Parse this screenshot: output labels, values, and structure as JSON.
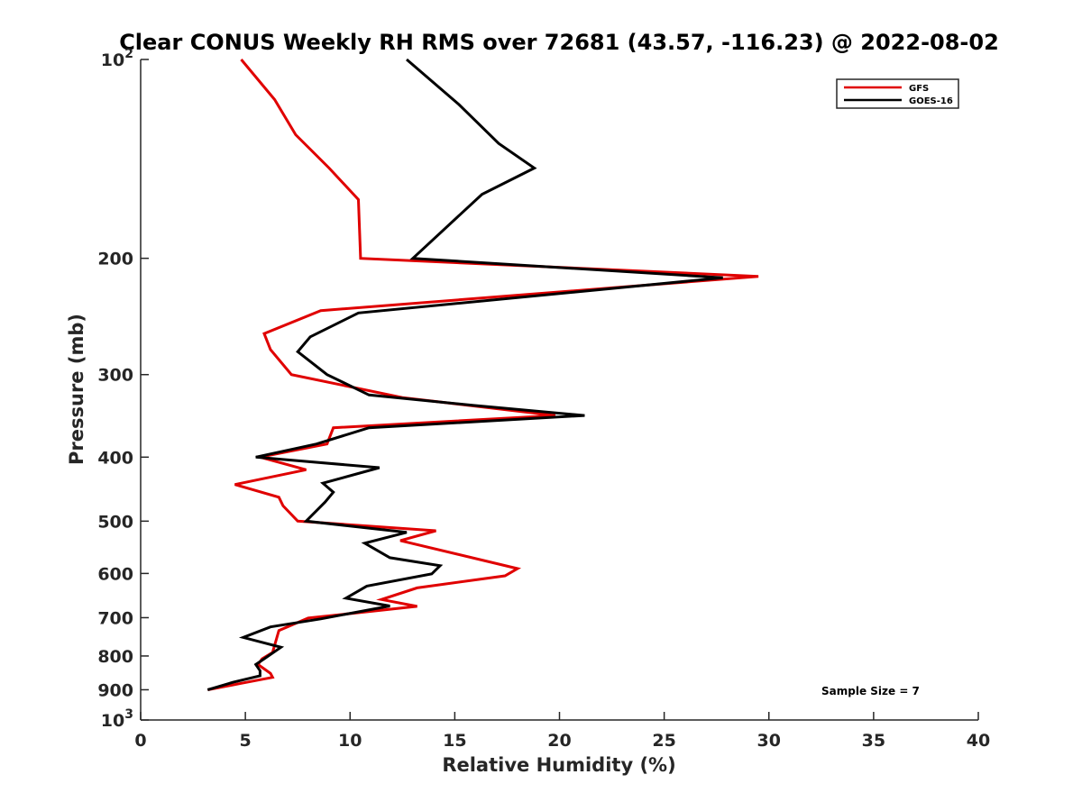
{
  "chart_data": {
    "type": "line",
    "title": "Clear CONUS Weekly RH RMS over 72681 (43.57, -116.23) @ 2022-08-02",
    "xlabel": "Relative Humidity (%)",
    "ylabel": "Pressure (mb)",
    "xlim": [
      0,
      40
    ],
    "ylim": [
      100,
      1000
    ],
    "y_scale": "log",
    "y_reversed": true,
    "x_ticks": [
      "0",
      "5",
      "10",
      "15",
      "20",
      "25",
      "30",
      "35",
      "40"
    ],
    "y_ticks": [
      {
        "value": 100,
        "label": "10",
        "sup": "2"
      },
      {
        "value": 200,
        "label": "200",
        "sup": ""
      },
      {
        "value": 300,
        "label": "300",
        "sup": ""
      },
      {
        "value": 400,
        "label": "400",
        "sup": ""
      },
      {
        "value": 500,
        "label": "500",
        "sup": ""
      },
      {
        "value": 600,
        "label": "600",
        "sup": ""
      },
      {
        "value": 700,
        "label": "700",
        "sup": ""
      },
      {
        "value": 800,
        "label": "800",
        "sup": ""
      },
      {
        "value": 900,
        "label": "900",
        "sup": ""
      },
      {
        "value": 1000,
        "label": "10",
        "sup": "3"
      }
    ],
    "grid": false,
    "legend_position": "top-right",
    "series": [
      {
        "name": "GFS",
        "color": "#e00000",
        "points": [
          [
            4.8,
            100
          ],
          [
            6.4,
            115
          ],
          [
            7.4,
            130
          ],
          [
            9.0,
            146
          ],
          [
            10.4,
            163
          ],
          [
            10.5,
            200
          ],
          [
            29.5,
            213
          ],
          [
            8.6,
            240
          ],
          [
            5.9,
            260
          ],
          [
            6.2,
            275
          ],
          [
            7.2,
            300
          ],
          [
            12.5,
            325
          ],
          [
            19.8,
            346
          ],
          [
            9.2,
            361
          ],
          [
            8.9,
            382
          ],
          [
            5.7,
            400
          ],
          [
            7.9,
            418
          ],
          [
            4.5,
            440
          ],
          [
            6.6,
            460
          ],
          [
            6.8,
            474
          ],
          [
            7.5,
            500
          ],
          [
            14.1,
            517
          ],
          [
            12.4,
            535
          ],
          [
            18.0,
            590
          ],
          [
            17.4,
            605
          ],
          [
            13.2,
            631
          ],
          [
            11.5,
            657
          ],
          [
            13.2,
            673
          ],
          [
            8.0,
            701
          ],
          [
            6.6,
            732
          ],
          [
            6.3,
            790
          ],
          [
            5.8,
            808
          ],
          [
            5.6,
            824
          ],
          [
            6.2,
            850
          ],
          [
            6.3,
            862
          ],
          [
            4.8,
            880
          ],
          [
            3.2,
            900
          ]
        ]
      },
      {
        "name": "GOES-16",
        "color": "#000000",
        "points": [
          [
            12.7,
            100
          ],
          [
            15.2,
            117
          ],
          [
            17.1,
            134
          ],
          [
            18.8,
            146
          ],
          [
            16.3,
            160
          ],
          [
            13.0,
            200
          ],
          [
            27.8,
            214
          ],
          [
            10.4,
            242
          ],
          [
            8.1,
            263
          ],
          [
            7.5,
            277
          ],
          [
            8.9,
            300
          ],
          [
            10.9,
            322
          ],
          [
            15.9,
            334
          ],
          [
            21.2,
            346
          ],
          [
            10.9,
            361
          ],
          [
            8.4,
            382
          ],
          [
            5.5,
            400
          ],
          [
            11.4,
            415
          ],
          [
            8.7,
            438
          ],
          [
            9.2,
            452
          ],
          [
            8.8,
            468
          ],
          [
            7.9,
            500
          ],
          [
            12.7,
            520
          ],
          [
            10.7,
            540
          ],
          [
            11.9,
            568
          ],
          [
            14.3,
            584
          ],
          [
            13.9,
            601
          ],
          [
            10.8,
            627
          ],
          [
            9.8,
            654
          ],
          [
            11.9,
            672
          ],
          [
            8.6,
            703
          ],
          [
            6.2,
            723
          ],
          [
            4.9,
            750
          ],
          [
            6.7,
            776
          ],
          [
            5.9,
            808
          ],
          [
            5.5,
            824
          ],
          [
            5.7,
            842
          ],
          [
            5.7,
            857
          ],
          [
            4.4,
            877
          ],
          [
            3.2,
            900
          ]
        ]
      }
    ],
    "annotation": "Sample Size = 7"
  }
}
